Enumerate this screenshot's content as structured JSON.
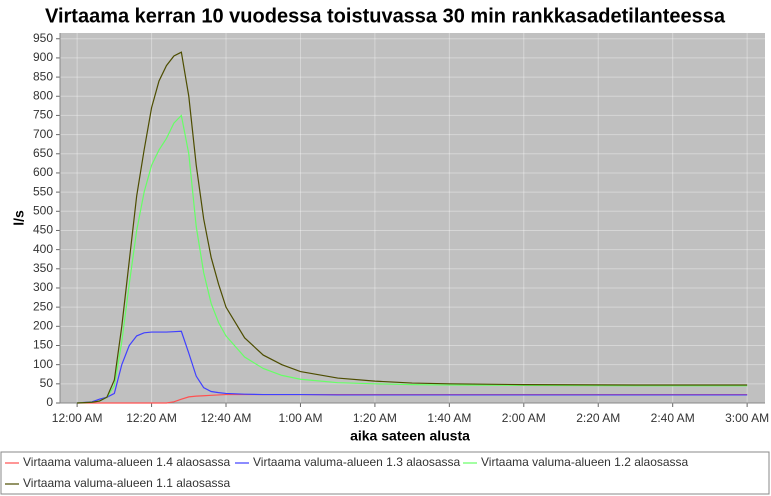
{
  "chart_data": {
    "type": "line",
    "title": "Virtaama kerran 10 vuodessa toistuvassa 30 min rankkasadetilanteessa",
    "x_label": "aika sateen alusta",
    "y_label": "l/s",
    "x": [
      0,
      4,
      6,
      8,
      10,
      12,
      14,
      16,
      18,
      20,
      22,
      24,
      26,
      28,
      30,
      32,
      34,
      36,
      38,
      40,
      45,
      50,
      55,
      60,
      70,
      80,
      90,
      100,
      120,
      150,
      180
    ],
    "series": [
      {
        "name": "Virtaama valuma-alueen 1.4 alaosassa",
        "color": "#ff5050",
        "values": [
          0,
          0,
          0,
          0,
          0,
          0,
          0,
          0,
          0,
          0,
          0,
          0,
          3,
          10,
          16,
          18,
          19,
          20,
          21,
          22,
          22,
          22,
          22,
          22,
          22,
          22,
          22,
          22,
          22,
          22,
          22
        ]
      },
      {
        "name": "Virtaama valuma-alueen 1.3 alaosassa",
        "color": "#4040ff",
        "values": [
          0,
          3,
          10,
          15,
          25,
          100,
          150,
          175,
          183,
          185,
          185,
          185,
          186,
          187,
          130,
          70,
          40,
          30,
          27,
          25,
          23,
          22,
          22,
          22,
          21,
          21,
          21,
          21,
          21,
          21,
          21
        ]
      },
      {
        "name": "Virtaama valuma-alueen 1.2 alaosassa",
        "color": "#66ff66",
        "values": [
          0,
          2,
          5,
          15,
          45,
          160,
          310,
          450,
          550,
          620,
          660,
          690,
          730,
          750,
          650,
          460,
          340,
          260,
          210,
          175,
          120,
          90,
          72,
          62,
          53,
          50,
          48,
          47,
          46,
          45,
          45
        ]
      },
      {
        "name": "Virtaama valuma-alueen 1.1 alaosassa",
        "color": "#4d4d00",
        "values": [
          0,
          2,
          5,
          15,
          60,
          200,
          370,
          540,
          660,
          770,
          840,
          880,
          905,
          915,
          800,
          620,
          480,
          380,
          310,
          250,
          170,
          125,
          100,
          82,
          65,
          57,
          52,
          50,
          48,
          47,
          47
        ]
      }
    ],
    "xlim": [
      -4.6,
      184.8
    ],
    "xticks": [
      {
        "value": 0,
        "label": "12:00 AM"
      },
      {
        "value": 20,
        "label": "12:20 AM"
      },
      {
        "value": 40,
        "label": "12:40 AM"
      },
      {
        "value": 60,
        "label": "1:00 AM"
      },
      {
        "value": 80,
        "label": "1:20 AM"
      },
      {
        "value": 100,
        "label": "1:40 AM"
      },
      {
        "value": 120,
        "label": "2:00 AM"
      },
      {
        "value": 140,
        "label": "2:20 AM"
      },
      {
        "value": 160,
        "label": "2:40 AM"
      },
      {
        "value": 180,
        "label": "3:00 AM"
      }
    ],
    "ylim": [
      0,
      965
    ],
    "yticks": [
      0,
      50,
      100,
      150,
      200,
      250,
      300,
      350,
      400,
      450,
      500,
      550,
      600,
      650,
      700,
      750,
      800,
      850,
      900,
      950
    ],
    "grid": true,
    "plot_background": "#c0c0c0"
  }
}
